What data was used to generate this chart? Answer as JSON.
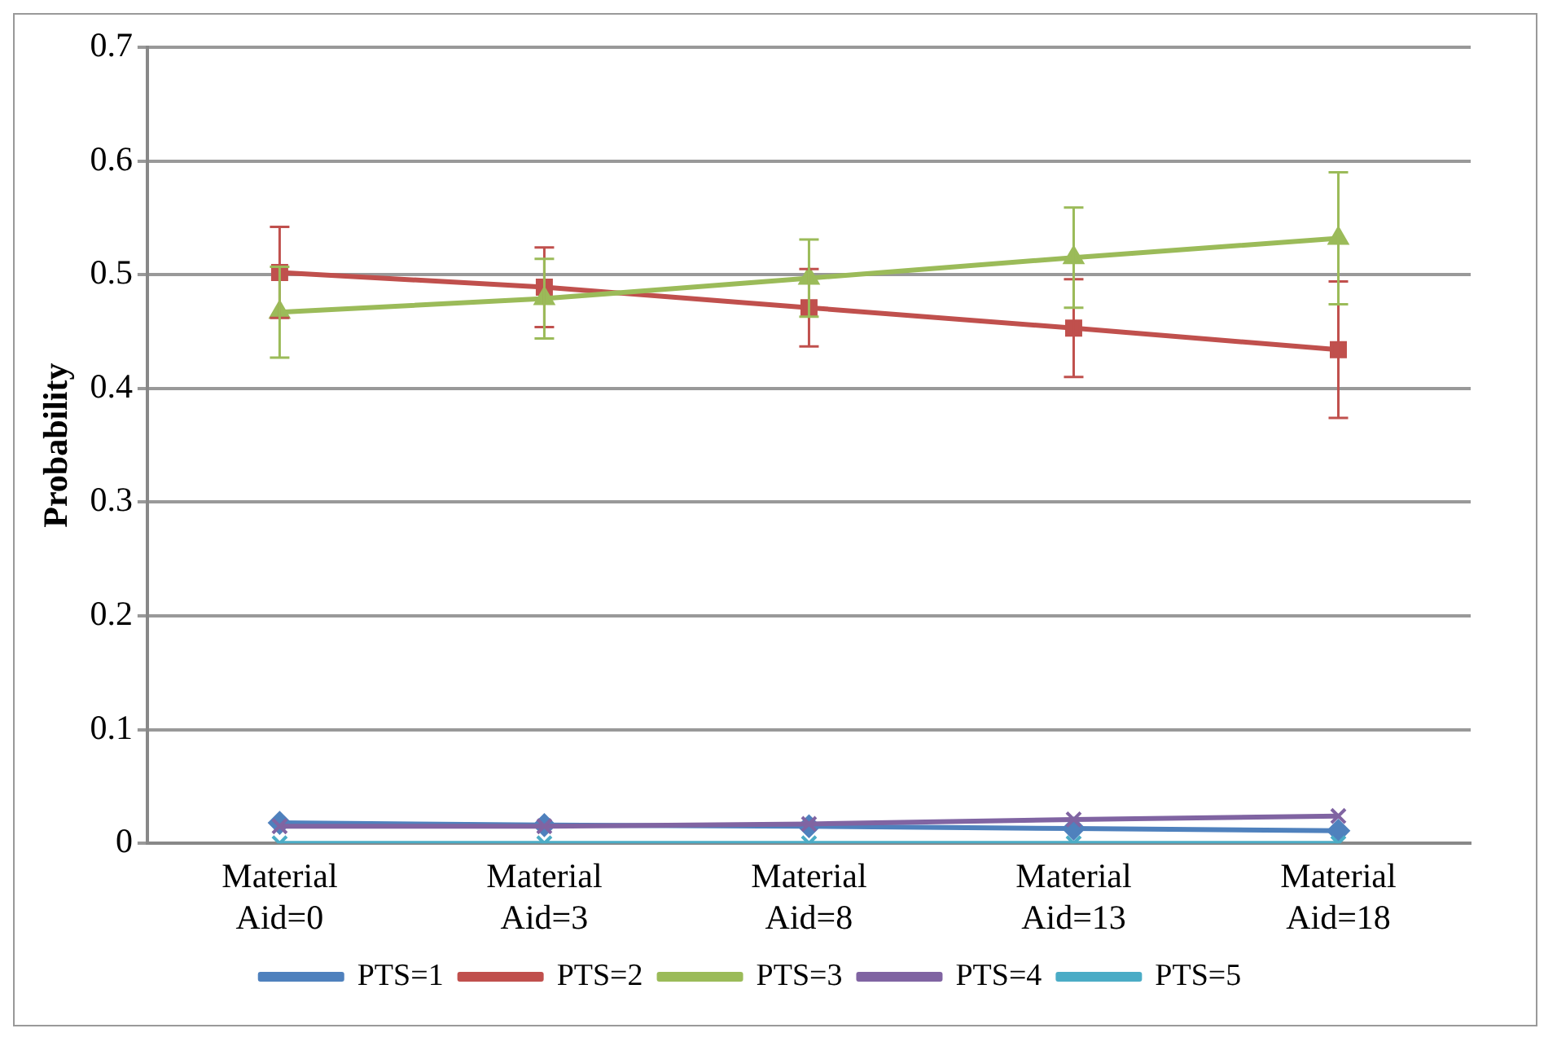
{
  "chart_data": {
    "type": "line",
    "ylabel": "Probability",
    "categories": [
      "Material Aid=0",
      "Material Aid=3",
      "Material Aid=8",
      "Material Aid=13",
      "Material Aid=18"
    ],
    "series": [
      {
        "name": "PTS=1",
        "color": "#4f81bd",
        "marker": "diamond",
        "values": [
          0.018,
          0.016,
          0.015,
          0.013,
          0.011
        ]
      },
      {
        "name": "PTS=2",
        "color": "#c0504d",
        "marker": "square",
        "values": [
          0.502,
          0.489,
          0.471,
          0.453,
          0.434
        ],
        "errors": [
          0.04,
          0.035,
          0.034,
          0.043,
          0.06
        ]
      },
      {
        "name": "PTS=3",
        "color": "#9bbb59",
        "marker": "triangle",
        "values": [
          0.467,
          0.479,
          0.497,
          0.515,
          0.532
        ],
        "errors": [
          0.04,
          0.035,
          0.034,
          0.044,
          0.058
        ]
      },
      {
        "name": "PTS=4",
        "color": "#8064a2",
        "marker": "cross",
        "values": [
          0.015,
          0.015,
          0.017,
          0.021,
          0.024
        ]
      },
      {
        "name": "PTS=5",
        "color": "#4bacc6",
        "marker": "cross",
        "values": [
          0,
          0,
          0,
          0,
          0
        ]
      }
    ],
    "ylim": [
      0,
      0.7
    ],
    "yticks": [
      0,
      0.1,
      0.2,
      0.3,
      0.4,
      0.5,
      0.6,
      0.7
    ],
    "grid": "y",
    "legend": "bottom"
  }
}
